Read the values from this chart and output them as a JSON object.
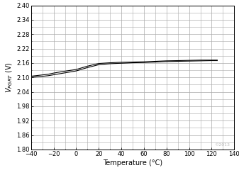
{
  "xlabel": "Temperature (°C)",
  "ylabel": "$V_{PGRT}$ (V)",
  "xlim": [
    -40,
    140
  ],
  "ylim": [
    1.8,
    2.4
  ],
  "xticks": [
    -40,
    -20,
    0,
    20,
    40,
    60,
    80,
    100,
    120,
    140
  ],
  "yticks": [
    1.8,
    1.86,
    1.92,
    1.98,
    2.04,
    2.1,
    2.16,
    2.22,
    2.28,
    2.34,
    2.4
  ],
  "line1_x": [
    -40,
    -25,
    -20,
    -15,
    -10,
    0,
    10,
    20,
    30,
    40,
    50,
    60,
    70,
    80,
    90,
    100,
    110,
    120,
    125
  ],
  "line1_y": [
    2.105,
    2.113,
    2.118,
    2.122,
    2.126,
    2.133,
    2.147,
    2.158,
    2.161,
    2.163,
    2.164,
    2.165,
    2.167,
    2.169,
    2.17,
    2.171,
    2.172,
    2.172,
    2.172
  ],
  "line2_x": [
    -40,
    -25,
    -20,
    -15,
    -10,
    0,
    10,
    20,
    30,
    40,
    50,
    60,
    70,
    80,
    90,
    100,
    110,
    120,
    125
  ],
  "line2_y": [
    2.1,
    2.107,
    2.111,
    2.115,
    2.119,
    2.127,
    2.141,
    2.153,
    2.157,
    2.159,
    2.161,
    2.162,
    2.164,
    2.166,
    2.167,
    2.168,
    2.169,
    2.17,
    2.17
  ],
  "line_color": "#000000",
  "grid_color": "#aaaaaa",
  "background_color": "#ffffff",
  "tick_fontsize": 6,
  "label_fontsize": 7,
  "copyright_text": "©2013",
  "copyright_fontsize": 4.5,
  "copyright_color": "#bbbbbb"
}
